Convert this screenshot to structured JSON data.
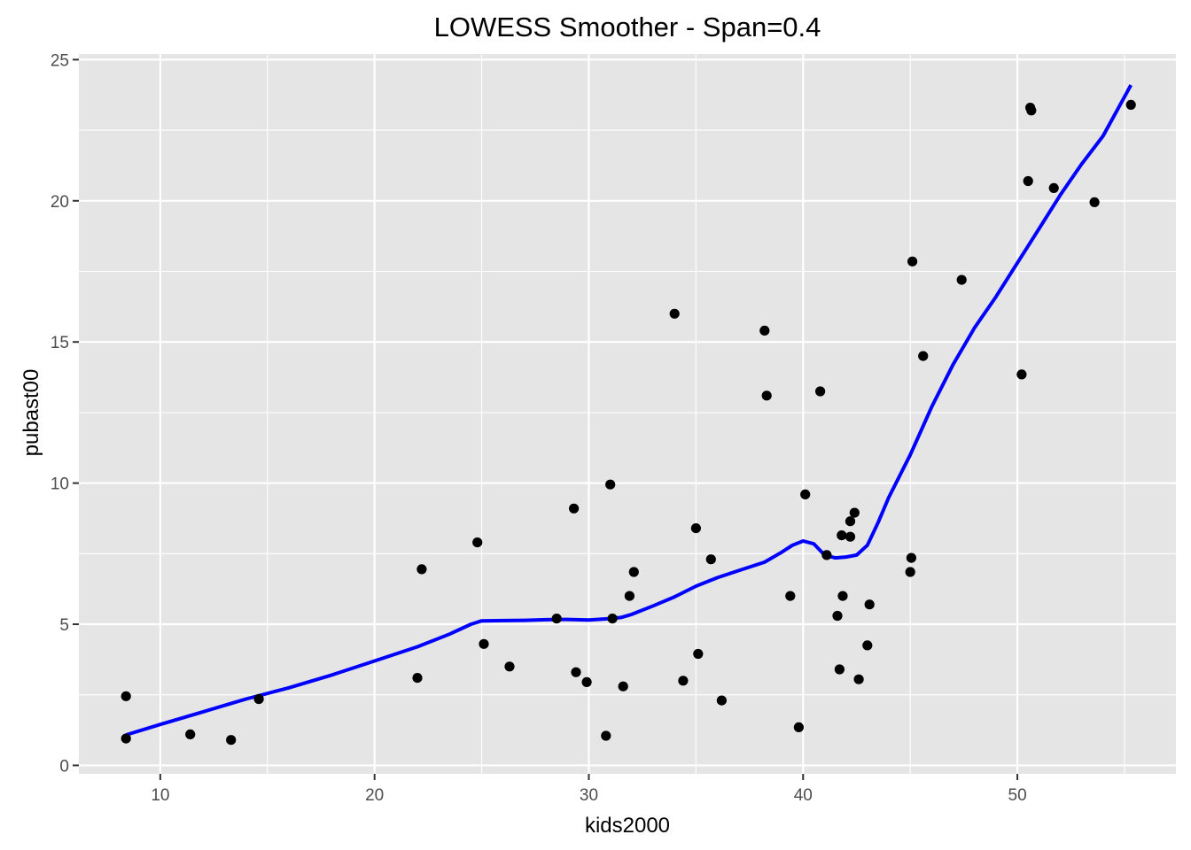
{
  "chart_data": {
    "type": "scatter",
    "title": "LOWESS Smoother - Span=0.4",
    "xlabel": "kids2000",
    "ylabel": "pubast00",
    "xlim": [
      6.2,
      57.4
    ],
    "ylim": [
      -0.3,
      25.2
    ],
    "x_ticks": [
      10,
      20,
      30,
      40,
      50
    ],
    "y_ticks": [
      0,
      5,
      10,
      15,
      20,
      25
    ],
    "x_tick_labels": [
      "10",
      "20",
      "30",
      "40",
      "50"
    ],
    "y_tick_labels": [
      "0",
      "5",
      "10",
      "15",
      "20",
      "25"
    ],
    "grid": true,
    "colors": {
      "panel": "#e5e5e5",
      "grid": "#ffffff",
      "points": "#000000",
      "smoother": "#0000ff",
      "tick_label": "#4d4d4d"
    },
    "series": [
      {
        "type": "scatter",
        "points": [
          [
            8.4,
            2.45
          ],
          [
            8.4,
            0.95
          ],
          [
            11.4,
            1.1
          ],
          [
            13.3,
            0.9
          ],
          [
            14.6,
            2.35
          ],
          [
            22.0,
            3.1
          ],
          [
            22.2,
            6.95
          ],
          [
            24.8,
            7.9
          ],
          [
            25.1,
            4.3
          ],
          [
            26.3,
            3.5
          ],
          [
            28.5,
            5.2
          ],
          [
            29.3,
            9.1
          ],
          [
            29.4,
            3.3
          ],
          [
            29.9,
            2.95
          ],
          [
            30.8,
            1.05
          ],
          [
            31.0,
            9.95
          ],
          [
            31.1,
            5.2
          ],
          [
            31.6,
            2.8
          ],
          [
            31.9,
            6.0
          ],
          [
            32.1,
            6.85
          ],
          [
            34.0,
            16.0
          ],
          [
            34.4,
            3.0
          ],
          [
            35.0,
            8.4
          ],
          [
            35.1,
            3.95
          ],
          [
            35.7,
            7.3
          ],
          [
            36.2,
            2.3
          ],
          [
            38.2,
            15.4
          ],
          [
            38.3,
            13.1
          ],
          [
            39.4,
            6.0
          ],
          [
            39.8,
            1.35
          ],
          [
            40.1,
            9.6
          ],
          [
            40.8,
            13.25
          ],
          [
            41.1,
            7.45
          ],
          [
            41.6,
            5.3
          ],
          [
            41.7,
            3.4
          ],
          [
            41.8,
            8.15
          ],
          [
            41.85,
            6.0
          ],
          [
            42.2,
            8.65
          ],
          [
            42.2,
            8.1
          ],
          [
            42.4,
            8.95
          ],
          [
            42.6,
            3.05
          ],
          [
            43.0,
            4.25
          ],
          [
            43.1,
            5.7
          ],
          [
            45.0,
            6.85
          ],
          [
            45.05,
            7.35
          ],
          [
            45.1,
            17.85
          ],
          [
            45.6,
            14.5
          ],
          [
            47.4,
            17.2
          ],
          [
            50.2,
            13.85
          ],
          [
            50.5,
            20.7
          ],
          [
            50.6,
            23.3
          ],
          [
            50.65,
            23.2
          ],
          [
            51.7,
            20.45
          ],
          [
            53.6,
            19.95
          ],
          [
            55.3,
            23.4
          ]
        ]
      },
      {
        "type": "line",
        "points": [
          [
            8.4,
            1.08
          ],
          [
            10.0,
            1.45
          ],
          [
            12.0,
            1.9
          ],
          [
            14.0,
            2.35
          ],
          [
            16.0,
            2.75
          ],
          [
            18.0,
            3.2
          ],
          [
            20.0,
            3.7
          ],
          [
            22.0,
            4.2
          ],
          [
            23.5,
            4.65
          ],
          [
            24.5,
            5.0
          ],
          [
            25.0,
            5.12
          ],
          [
            26.0,
            5.13
          ],
          [
            27.0,
            5.14
          ],
          [
            28.0,
            5.16
          ],
          [
            29.0,
            5.17
          ],
          [
            30.0,
            5.15
          ],
          [
            31.0,
            5.2
          ],
          [
            31.5,
            5.24
          ],
          [
            32.0,
            5.35
          ],
          [
            33.0,
            5.65
          ],
          [
            34.0,
            5.97
          ],
          [
            35.0,
            6.35
          ],
          [
            36.0,
            6.65
          ],
          [
            37.0,
            6.9
          ],
          [
            38.0,
            7.15
          ],
          [
            38.2,
            7.2
          ],
          [
            39.0,
            7.55
          ],
          [
            39.5,
            7.8
          ],
          [
            40.0,
            7.95
          ],
          [
            40.5,
            7.85
          ],
          [
            41.0,
            7.45
          ],
          [
            41.5,
            7.35
          ],
          [
            42.0,
            7.38
          ],
          [
            42.5,
            7.45
          ],
          [
            43.0,
            7.8
          ],
          [
            43.5,
            8.6
          ],
          [
            44.0,
            9.5
          ],
          [
            45.0,
            11.0
          ],
          [
            46.0,
            12.7
          ],
          [
            47.0,
            14.2
          ],
          [
            48.0,
            15.5
          ],
          [
            49.0,
            16.6
          ],
          [
            50.0,
            17.8
          ],
          [
            51.0,
            19.0
          ],
          [
            52.0,
            20.2
          ],
          [
            53.0,
            21.3
          ],
          [
            54.0,
            22.3
          ],
          [
            55.3,
            24.1
          ]
        ]
      }
    ]
  }
}
